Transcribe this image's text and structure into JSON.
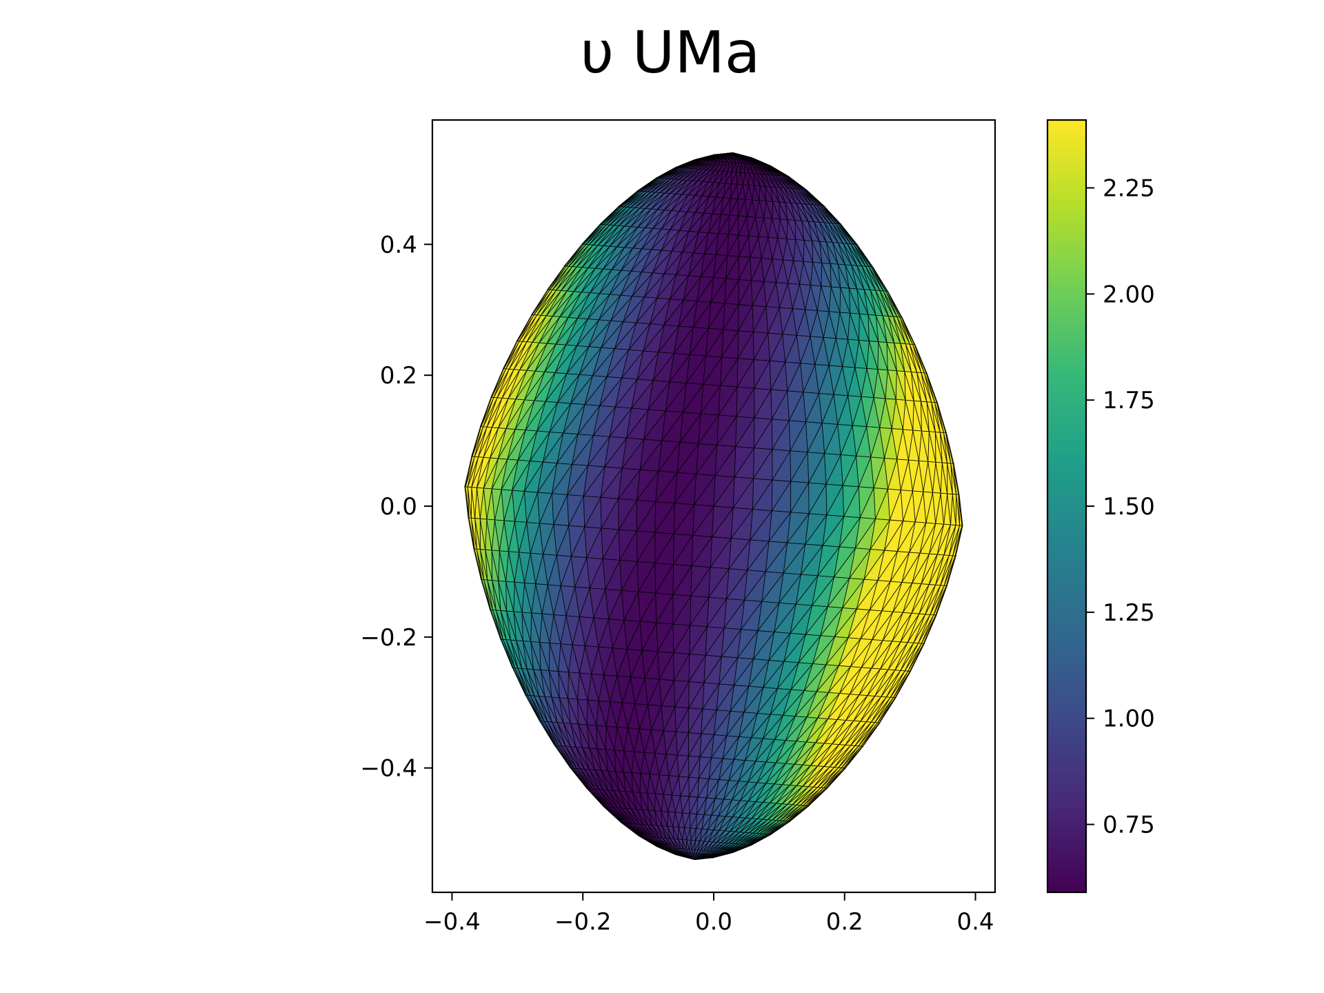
{
  "chart_data": {
    "type": "heatmap",
    "title": "υ UMa",
    "xlabel": "",
    "ylabel": "",
    "xlim": [
      -0.43,
      0.43
    ],
    "ylim": [
      -0.59,
      0.59
    ],
    "x_ticks": [
      -0.4,
      -0.2,
      0.0,
      0.2,
      0.4
    ],
    "x_tick_labels": [
      "−0.4",
      "−0.2",
      "0.0",
      "0.2",
      "0.4"
    ],
    "y_ticks": [
      -0.4,
      -0.2,
      0.0,
      0.2,
      0.4
    ],
    "y_tick_labels": [
      "−0.4",
      "−0.2",
      "0.0",
      "0.2",
      "0.4"
    ],
    "colorbar": {
      "colormap": "viridis",
      "range": [
        0.59,
        2.41
      ],
      "ticks": [
        0.75,
        1.0,
        1.25,
        1.5,
        1.75,
        2.0,
        2.25
      ],
      "tick_labels": [
        "0.75",
        "1.00",
        "1.25",
        "1.50",
        "1.75",
        "2.00",
        "2.25"
      ]
    },
    "surface": {
      "description_values": "triangulated oblate stellar surface colored by intensity",
      "half_width": 0.39,
      "half_height": 0.54,
      "min_value_band_x": -0.1,
      "max_value_edge_right": 2.4,
      "max_value_edge_left": 2.2,
      "grid": false
    },
    "colors": {
      "viridis": [
        "#440154",
        "#482878",
        "#3e4989",
        "#31688e",
        "#26828e",
        "#1f9e89",
        "#35b779",
        "#6ece58",
        "#b5de2b",
        "#fde725"
      ]
    }
  }
}
